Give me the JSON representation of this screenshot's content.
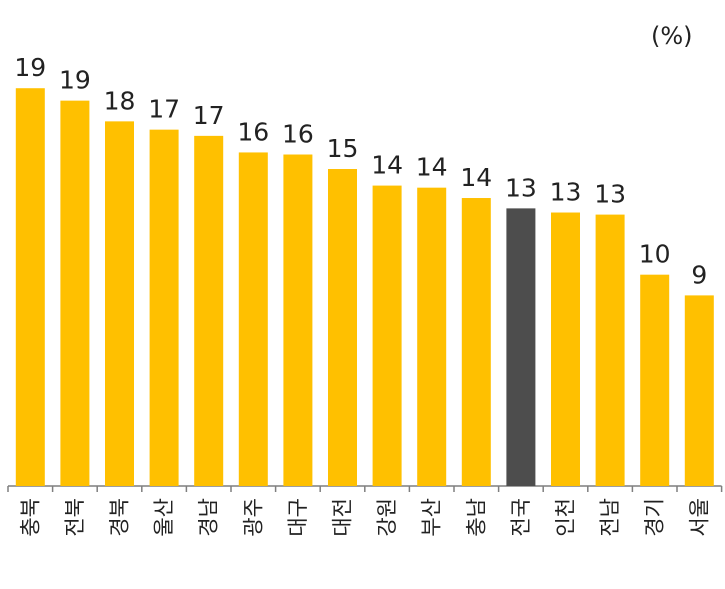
{
  "chart_data": {
    "type": "bar",
    "unit_label": "(%)",
    "categories": [
      "충북",
      "전북",
      "경북",
      "울산",
      "경남",
      "광주",
      "대구",
      "대전",
      "강원",
      "부산",
      "충남",
      "전국",
      "인천",
      "전남",
      "경기",
      "서울"
    ],
    "values": [
      19.2,
      18.6,
      17.6,
      17.2,
      16.9,
      16.1,
      16.0,
      15.3,
      14.5,
      14.4,
      13.9,
      13.4,
      13.2,
      13.1,
      10.2,
      9.2
    ],
    "data_labels": [
      "19",
      "19",
      "18",
      "17",
      "17",
      "16",
      "16",
      "15",
      "14",
      "14",
      "14",
      "13",
      "13",
      "13",
      "10",
      "9"
    ],
    "ylim": [
      0,
      19.5
    ],
    "colors": {
      "default": "#FFC000",
      "highlight": "#4D4D4D"
    },
    "highlight_category": "전국",
    "grid": false,
    "legend": "none"
  }
}
